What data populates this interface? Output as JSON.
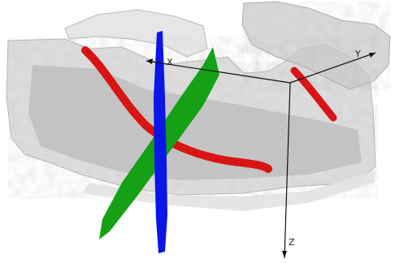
{
  "scene": {
    "axes": {
      "x_label": "X",
      "y_label": "Y",
      "z_label": "Z"
    },
    "colors": {
      "background": "#ffffff",
      "bone": "#bdbdbd",
      "canal_path": "#e01a1a",
      "plane_green": "#15a015",
      "plane_blue": "#0a16e8",
      "axis_line": "#111111"
    }
  }
}
